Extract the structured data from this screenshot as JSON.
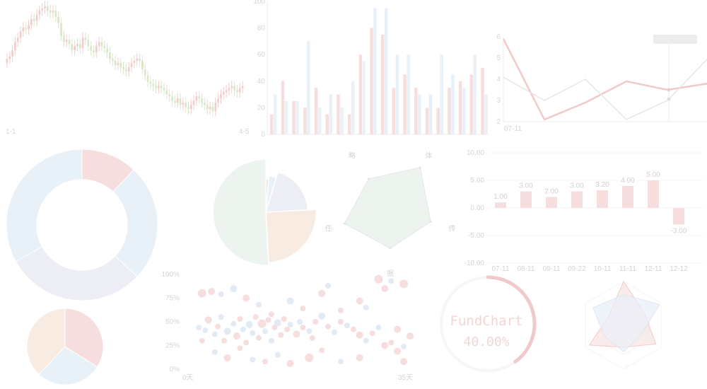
{
  "colors": {
    "red": "#f7dede",
    "red_stroke": "#f0caca",
    "blue": "#e8f0f8",
    "blue_stroke": "#dbe6f1",
    "green": "#edf3ee",
    "lavender": "#ecedf5",
    "peach": "#f8ece2",
    "axis": "#ececec",
    "label": "#d4d4d4"
  },
  "chart_data": [
    {
      "id": "candlestick",
      "type": "candlestick",
      "x_start_label": "1-1",
      "x_end_label": "4-5",
      "closes": [
        16,
        17,
        20,
        24,
        26,
        29,
        31,
        30,
        32,
        35,
        34,
        37,
        39,
        40,
        41,
        39,
        38,
        39,
        36,
        33,
        27,
        24,
        25,
        23,
        20,
        22,
        23,
        21,
        26,
        25,
        22,
        20,
        19,
        22,
        24,
        22,
        21,
        19,
        16,
        15,
        13,
        14,
        12,
        11,
        10,
        12,
        14,
        15,
        16,
        15,
        11,
        8,
        5,
        4,
        3,
        2,
        3,
        2,
        1,
        -1,
        -2,
        -4,
        -5,
        -3,
        -6,
        -5,
        -7,
        -8,
        -6,
        -4,
        -2,
        -3,
        -5,
        -6,
        -8,
        -7,
        -9,
        -5,
        -3,
        -1,
        0,
        1,
        2,
        3,
        1,
        0,
        2,
        3
      ],
      "ylim": [
        -14,
        44
      ]
    },
    {
      "id": "bars",
      "type": "bar",
      "y_tick_labels": [
        "100",
        "80",
        "60",
        "40",
        "20",
        "0"
      ],
      "ylim": [
        0,
        100
      ],
      "series": [
        {
          "color": "red",
          "values": [
            15,
            40,
            25,
            20,
            35,
            15,
            30,
            15,
            60,
            80,
            75,
            35,
            45,
            35,
            20,
            20,
            35,
            40,
            45,
            50
          ]
        },
        {
          "color": "blue",
          "values": [
            30,
            25,
            25,
            70,
            20,
            30,
            20,
            40,
            55,
            95,
            95,
            60,
            60,
            30,
            30,
            60,
            45,
            35,
            60,
            30
          ]
        }
      ]
    },
    {
      "id": "lines",
      "type": "line",
      "y_tick_labels": [
        "6",
        "5",
        "4",
        "3",
        "2"
      ],
      "ylim": [
        2,
        6
      ],
      "x_label": "07-11",
      "tooltip": "",
      "series": [
        {
          "color": "red",
          "values": [
            5.9,
            2.1,
            2.9,
            3.9,
            3.5,
            3.8
          ]
        },
        {
          "color": "gray",
          "values": [
            4.1,
            3.0,
            4.0,
            2.1,
            3.0,
            5.0
          ]
        }
      ]
    },
    {
      "id": "donut",
      "type": "pie",
      "inner_radius_ratio": 0.6,
      "slices": [
        {
          "value": 12,
          "color": "red"
        },
        {
          "value": 25,
          "color": "blue"
        },
        {
          "value": 30,
          "color": "lavender"
        },
        {
          "value": 33,
          "color": "blue"
        }
      ]
    },
    {
      "id": "rose-pie",
      "type": "pie",
      "slices": [
        {
          "angle": 5,
          "radius": 55,
          "color": "red"
        },
        {
          "angle": 12,
          "radius": 60,
          "color": "blue"
        },
        {
          "angle": 70,
          "radius": 70,
          "color": "lavender"
        },
        {
          "angle": 90,
          "radius": 84,
          "color": "peach"
        },
        {
          "angle": 183,
          "radius": 88,
          "color": "green"
        }
      ]
    },
    {
      "id": "radar",
      "type": "radar",
      "axis_labels": [
        "体",
        "传",
        "据",
        "任",
        "略"
      ],
      "values": [
        0.9,
        0.75,
        0.7,
        0.85,
        0.65
      ]
    },
    {
      "id": "bar-labels",
      "type": "bar",
      "categories": [
        "07-11",
        "08-11",
        "09-11",
        "09-22",
        "10-11",
        "11-11",
        "12-11",
        "12-12"
      ],
      "values": [
        1,
        3,
        2,
        3,
        3.2,
        4,
        5,
        -3
      ],
      "value_labels": [
        "1.00",
        "3.00",
        "2.00",
        "3.00",
        "3.20",
        "4.00",
        "5.00",
        "-3.00"
      ],
      "y_tick_labels": [
        "10.00",
        "5.00",
        "0.00",
        "-5.00",
        "-10.00"
      ],
      "ylim": [
        -10,
        10
      ]
    },
    {
      "id": "small-pie",
      "type": "pie",
      "slices": [
        {
          "value": 34,
          "color": "red"
        },
        {
          "value": 28,
          "color": "blue"
        },
        {
          "value": 38,
          "color": "peach"
        }
      ]
    },
    {
      "id": "scatter",
      "type": "scatter",
      "y_tick_labels": [
        "100%",
        "75%",
        "50%",
        "25%",
        "0%"
      ],
      "x_start_label": "0天",
      "x_end_label": "35天",
      "xlim": [
        0,
        35
      ],
      "ylim": [
        0,
        100
      ],
      "points": [
        [
          1.5,
          44,
          "blue",
          4
        ],
        [
          2.5,
          41,
          "blue",
          4
        ],
        [
          3,
          52,
          "red",
          5
        ],
        [
          4,
          37,
          "blue",
          4
        ],
        [
          2,
          30,
          "red",
          4
        ],
        [
          4.5,
          45,
          "red",
          4
        ],
        [
          5,
          55,
          "blue",
          4
        ],
        [
          6,
          40,
          "blue",
          5
        ],
        [
          5.5,
          30,
          "red",
          4
        ],
        [
          7,
          48,
          "blue",
          4
        ],
        [
          7.5,
          35,
          "red",
          5
        ],
        [
          8,
          53,
          "red",
          4
        ],
        [
          8.5,
          42,
          "blue",
          4
        ],
        [
          9,
          28,
          "red",
          4
        ],
        [
          9.5,
          47,
          "blue",
          5
        ],
        [
          10,
          38,
          "blue",
          4
        ],
        [
          10.5,
          55,
          "red",
          4
        ],
        [
          11,
          33,
          "red",
          4
        ],
        [
          11.5,
          48,
          "red",
          6
        ],
        [
          12,
          40,
          "blue",
          4
        ],
        [
          12.5,
          52,
          "red",
          4
        ],
        [
          13,
          30,
          "blue",
          4
        ],
        [
          13.5,
          44,
          "red",
          4
        ],
        [
          14,
          49,
          "blue",
          5
        ],
        [
          14.5,
          36,
          "red",
          4
        ],
        [
          15,
          53,
          "red",
          4
        ],
        [
          15.5,
          42,
          "red",
          4
        ],
        [
          16,
          47,
          "blue",
          4
        ],
        [
          17,
          37,
          "red",
          5
        ],
        [
          17.5,
          50,
          "blue",
          4
        ],
        [
          18,
          44,
          "red",
          4
        ],
        [
          19,
          40,
          "blue",
          4
        ],
        [
          19.5,
          33,
          "red",
          4
        ],
        [
          20,
          50,
          "red",
          4
        ],
        [
          21,
          56,
          "blue",
          5
        ],
        [
          22,
          45,
          "red",
          4
        ],
        [
          23,
          39,
          "blue",
          4
        ],
        [
          24,
          50,
          "red",
          4
        ],
        [
          25,
          46,
          "blue",
          4
        ],
        [
          26,
          42,
          "red",
          4
        ],
        [
          27,
          36,
          "red",
          5
        ],
        [
          28,
          30,
          "blue",
          4
        ],
        [
          29,
          38,
          "red",
          4
        ],
        [
          30,
          44,
          "blue",
          4
        ],
        [
          31,
          25,
          "red",
          5
        ],
        [
          32,
          28,
          "red",
          4
        ],
        [
          33,
          19,
          "red",
          5
        ],
        [
          34,
          24,
          "blue",
          4
        ],
        [
          2,
          80,
          "red",
          6
        ],
        [
          3.5,
          82,
          "red",
          5
        ],
        [
          5,
          79,
          "blue",
          4
        ],
        [
          7,
          85,
          "blue",
          5
        ],
        [
          9,
          75,
          "red",
          5
        ],
        [
          11,
          68,
          "blue",
          4
        ],
        [
          13,
          58,
          "red",
          4
        ],
        [
          16,
          72,
          "blue",
          5
        ],
        [
          18,
          64,
          "red",
          4
        ],
        [
          21,
          80,
          "red",
          5
        ],
        [
          22,
          88,
          "blue",
          4
        ],
        [
          24,
          62,
          "red",
          4
        ],
        [
          27,
          72,
          "red",
          5
        ],
        [
          28,
          65,
          "blue",
          4
        ],
        [
          30,
          95,
          "red",
          6
        ],
        [
          31,
          85,
          "red",
          5
        ],
        [
          32,
          93,
          "blue",
          4
        ],
        [
          34,
          90,
          "red",
          6
        ],
        [
          33,
          42,
          "red",
          5
        ],
        [
          35,
          35,
          "red",
          5
        ],
        [
          34,
          8,
          "red",
          5
        ],
        [
          19,
          12,
          "red",
          6
        ],
        [
          16,
          6,
          "red",
          5
        ],
        [
          10,
          10,
          "blue",
          4
        ],
        [
          12,
          8,
          "red",
          4
        ],
        [
          6,
          12,
          "red",
          5
        ],
        [
          4,
          18,
          "blue",
          4
        ],
        [
          8,
          22,
          "red",
          4
        ],
        [
          14,
          15,
          "blue",
          4
        ],
        [
          21,
          20,
          "red",
          4
        ],
        [
          24,
          8,
          "blue",
          4
        ],
        [
          27,
          12,
          "red",
          5
        ]
      ]
    },
    {
      "id": "gauge",
      "type": "gauge",
      "title": "FundChart",
      "label": "40.00%",
      "value": 0.4
    },
    {
      "id": "radar-2",
      "type": "radar",
      "series": [
        {
          "color": "red",
          "values": [
            1.0,
            0.55,
            0.85,
            0.5,
            0.9,
            0.4
          ]
        },
        {
          "color": "blue",
          "values": [
            0.7,
            0.95,
            0.45,
            0.6,
            0.5,
            0.8
          ]
        }
      ]
    }
  ]
}
